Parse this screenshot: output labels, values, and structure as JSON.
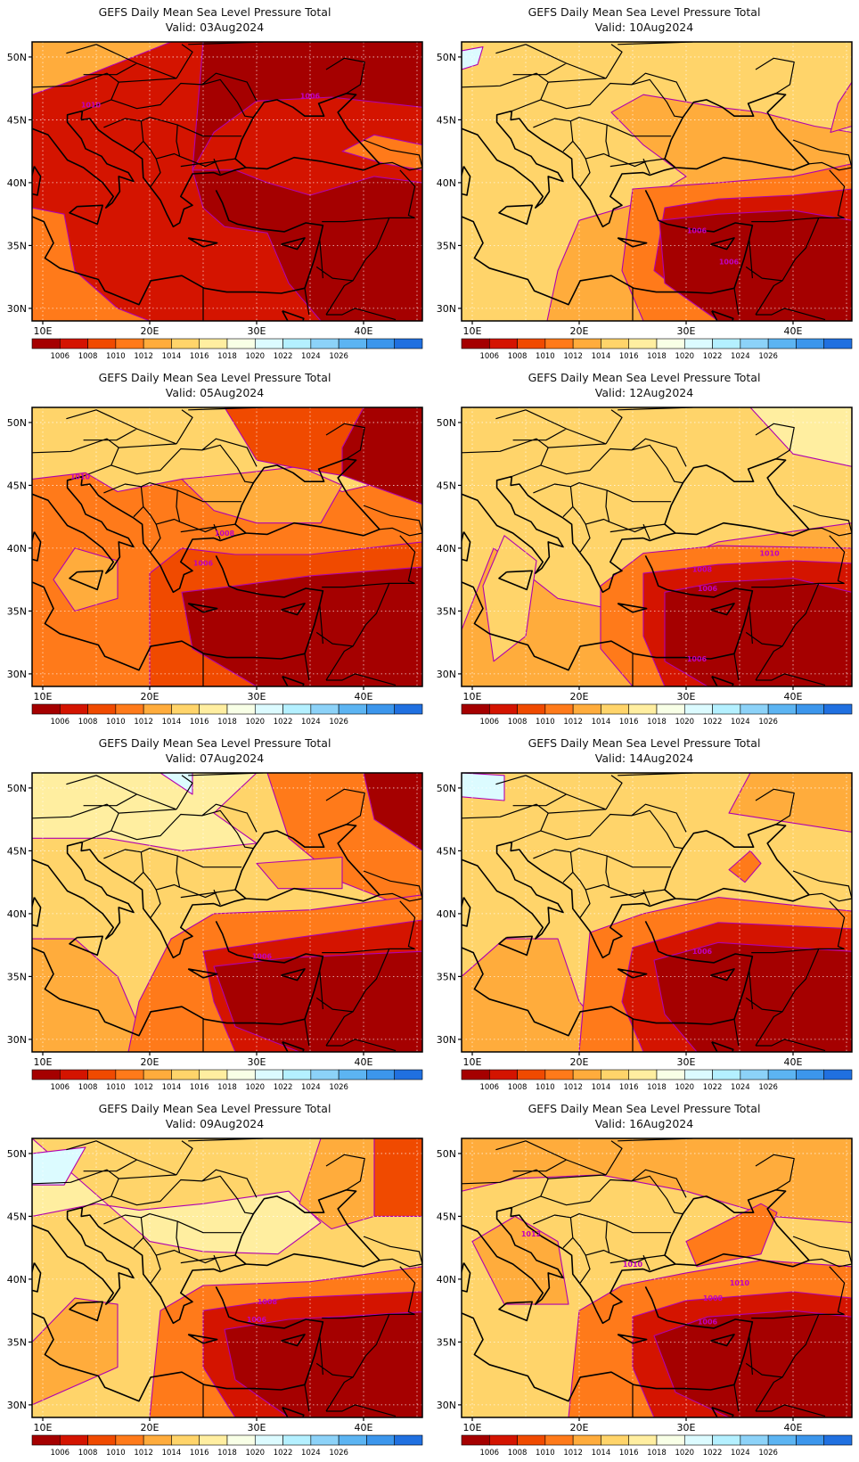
{
  "panels": [
    {
      "title": "GEFS Daily Mean Sea Level Pressure Total",
      "valid": "Valid: 03Aug2024",
      "labels": [
        "1010",
        "1006"
      ]
    },
    {
      "title": "GEFS Daily Mean Sea Level Pressure Total",
      "valid": "Valid: 10Aug2024",
      "labels": [
        "1006",
        "1006"
      ]
    },
    {
      "title": "GEFS Daily Mean Sea Level Pressure Total",
      "valid": "Valid: 05Aug2024",
      "labels": [
        "1010",
        "1008",
        "1006"
      ]
    },
    {
      "title": "GEFS Daily Mean Sea Level Pressure Total",
      "valid": "Valid: 12Aug2024",
      "labels": [
        "1010",
        "1008",
        "1006",
        "1006"
      ]
    },
    {
      "title": "GEFS Daily Mean Sea Level Pressure Total",
      "valid": "Valid: 07Aug2024",
      "labels": [
        "1006"
      ]
    },
    {
      "title": "GEFS Daily Mean Sea Level Pressure Total",
      "valid": "Valid: 14Aug2024",
      "labels": [
        "1006"
      ]
    },
    {
      "title": "GEFS Daily Mean Sea Level Pressure Total",
      "valid": "Valid: 09Aug2024",
      "labels": [
        "1008",
        "1006"
      ]
    },
    {
      "title": "GEFS Daily Mean Sea Level Pressure Total",
      "valid": "Valid: 16Aug2024",
      "labels": [
        "1012",
        "1010",
        "1010",
        "1008",
        "1006"
      ]
    }
  ],
  "axes": {
    "lat_ticks": [
      "50N",
      "45N",
      "40N",
      "35N",
      "30N"
    ],
    "lon_ticks": [
      "10E",
      "20E",
      "30E",
      "40E"
    ]
  },
  "colorbar": {
    "colors": [
      "#a50000",
      "#d41400",
      "#f04a00",
      "#ff7a1a",
      "#ffac3c",
      "#ffd46a",
      "#ffeea0",
      "#f8ffe6",
      "#dcfbff",
      "#b4f0ff",
      "#8cd2f8",
      "#5cb4f2",
      "#3c96ec",
      "#2070e0"
    ],
    "labels": [
      "1006",
      "1008",
      "1010",
      "1012",
      "1014",
      "1016",
      "1018",
      "1020",
      "1022",
      "1024",
      "1026"
    ]
  }
}
